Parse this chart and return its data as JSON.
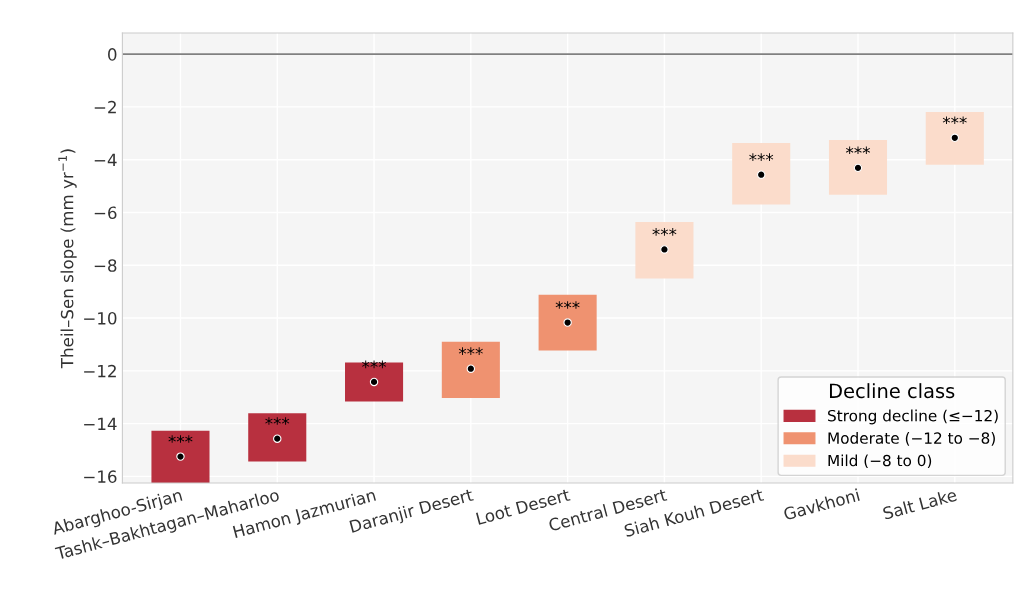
{
  "chart_data": {
    "type": "bar",
    "ylabel": "Theil–Sen slope (mm yr$^{−1}$)",
    "legend_title": "Decline class",
    "categories": [
      "Abarghoo-Sirjan",
      "Tashk–Bakhtagan–Maharloo",
      "Hamon Jazmurian",
      "Daranjir Desert",
      "Loot Desert",
      "Central Desert",
      "Siah Kouh Desert",
      "Gavkhoni",
      "Salt Lake"
    ],
    "series": [
      {
        "name": "Strong decline (≤−12)",
        "color": "#b8303f",
        "base": [
          -16.25,
          -15.44,
          -13.16,
          null,
          null,
          null,
          null,
          null,
          null
        ],
        "values": [
          1.98,
          1.83,
          1.48,
          null,
          null,
          null,
          null,
          null,
          null
        ]
      },
      {
        "name": "Moderate (−12 to −8)",
        "color": "#ef9270",
        "base": [
          null,
          null,
          null,
          -13.03,
          -11.23,
          null,
          null,
          null,
          null
        ],
        "values": [
          null,
          null,
          null,
          2.13,
          2.11,
          null,
          null,
          null,
          null
        ]
      },
      {
        "name": "Mild (−8 to 0)",
        "color": "#fbdccb",
        "base": [
          null,
          null,
          null,
          null,
          null,
          -8.5,
          -5.7,
          -5.33,
          -4.19
        ],
        "values": [
          null,
          null,
          null,
          null,
          null,
          2.14,
          2.33,
          2.08,
          2.0
        ]
      },
      {
        "type": "scatter",
        "color": "#000000",
        "marker": "circle",
        "values": [
          -15.25,
          -14.57,
          -12.42,
          -11.92,
          -10.17,
          -7.4,
          -4.57,
          -4.31,
          -3.17
        ]
      }
    ],
    "annotations": [
      {
        "text": "***",
        "x": "Abarghoo-Sirjan",
        "y": -15.25
      },
      {
        "text": "***",
        "x": "Tashk–Bakhtagan–Maharloo",
        "y": -14.57
      },
      {
        "text": "***",
        "x": "Hamon Jazmurian",
        "y": -12.42
      },
      {
        "text": "***",
        "x": "Daranjir Desert",
        "y": -11.92
      },
      {
        "text": "***",
        "x": "Loot Desert",
        "y": -10.17
      },
      {
        "text": "***",
        "x": "Central Desert",
        "y": -7.4
      },
      {
        "text": "***",
        "x": "Siah Kouh Desert",
        "y": -4.57
      },
      {
        "text": "***",
        "x": "Gavkhoni",
        "y": -4.31
      },
      {
        "text": "***",
        "x": "Salt Lake",
        "y": -3.17
      }
    ],
    "ref_lines": [
      {
        "axis": "y",
        "value": 0,
        "color": "#808080"
      }
    ],
    "ylim": [
      -16.25,
      0.8
    ],
    "yticks": [
      {
        "value": -16,
        "label": "−16"
      },
      {
        "value": -14,
        "label": "−14"
      },
      {
        "value": -12,
        "label": "−12"
      },
      {
        "value": -10,
        "label": "−10"
      },
      {
        "value": -8,
        "label": "−8"
      },
      {
        "value": -6,
        "label": "−6"
      },
      {
        "value": -4,
        "label": "−4"
      },
      {
        "value": -2,
        "label": "−2"
      },
      0
    ],
    "grid": true,
    "legend": "bottom right"
  }
}
